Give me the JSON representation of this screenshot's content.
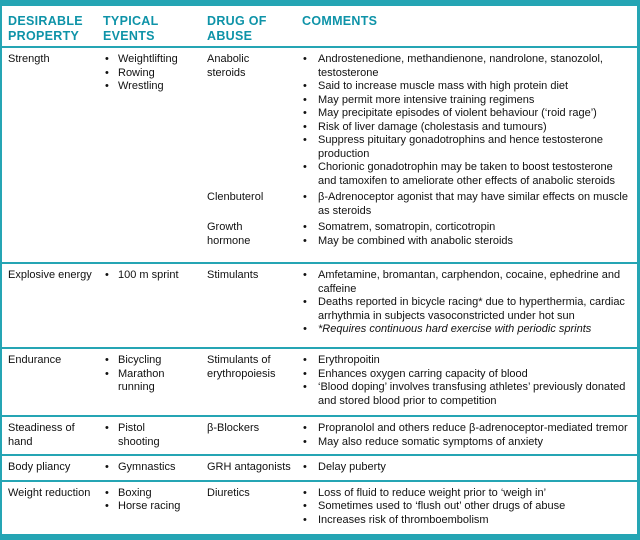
{
  "colors": {
    "accent": "#25a5b4",
    "header_text": "#0e93a8"
  },
  "table": {
    "headers": [
      "DESIRABLE PROPERTY",
      "TYPICAL EVENTS",
      "DRUG OF ABUSE",
      "COMMENTS"
    ],
    "sections": [
      {
        "property": "Strength",
        "events": [
          "Weightlifting",
          "Rowing",
          "Wrestling"
        ],
        "groups": [
          {
            "drug": "Anabolic steroids",
            "comments": [
              "Androstenedione, methandienone, nandrolone, stanozolol, testosterone",
              "Said to increase muscle mass with high protein diet",
              "May permit more intensive training regimens",
              "May precipitate episodes of violent behaviour (‘roid rage’)",
              "Risk of liver damage (cholestasis and tumours)",
              "Suppress pituitary gonadotrophins and hence testosterone production",
              "Chorionic gonadotrophin may be taken to boost testosterone and tamoxifen to ameliorate other effects of anabolic steroids"
            ]
          },
          {
            "drug": "Clenbuterol",
            "comments": [
              "β-Adrenoceptor agonist that may have similar effects on muscle as steroids"
            ]
          },
          {
            "drug": "Growth hormone",
            "comments": [
              "Somatrem, somatropin, corticotropin",
              "May be combined with anabolic steroids"
            ]
          }
        ]
      },
      {
        "property": "Explosive energy",
        "events": [
          "100 m sprint"
        ],
        "groups": [
          {
            "drug": "Stimulants",
            "comments": [
              "Amfetamine, bromantan, carphendon, cocaine, ephedrine and caffeine",
              "Deaths reported in bicycle racing* due to hyperthermia, cardiac arrhythmia in subjects vasoconstricted under hot sun",
              "*Requires continuous hard exercise with periodic sprints"
            ]
          }
        ]
      },
      {
        "property": "Endurance",
        "events": [
          "Bicycling",
          "Marathon running"
        ],
        "groups": [
          {
            "drug": "Stimulants of erythropoiesis",
            "comments": [
              "Erythropoitin",
              "Enhances oxygen carring capacity of blood",
              "‘Blood doping’ involves transfusing athletes’ previously donated and stored blood prior to competition"
            ]
          }
        ]
      },
      {
        "property": "Steadiness of hand",
        "events": [
          "Pistol shooting"
        ],
        "groups": [
          {
            "drug": "β-Blockers",
            "comments": [
              "Propranolol and others reduce β-adrenoceptor-mediated tremor",
              "May also reduce somatic symptoms of anxiety"
            ]
          }
        ]
      },
      {
        "property": "Body pliancy",
        "events": [
          "Gymnastics"
        ],
        "groups": [
          {
            "drug": "GRH antagonists",
            "comments": [
              "Delay puberty"
            ]
          }
        ]
      },
      {
        "property": "Weight reduction",
        "events": [
          "Boxing",
          "Horse racing"
        ],
        "groups": [
          {
            "drug": "Diuretics",
            "comments": [
              "Loss of fluid to reduce weight prior to ‘weigh in’",
              "Sometimes used to ‘flush out’ other drugs of abuse",
              "Increases risk of thromboembolism"
            ]
          }
        ]
      }
    ]
  }
}
